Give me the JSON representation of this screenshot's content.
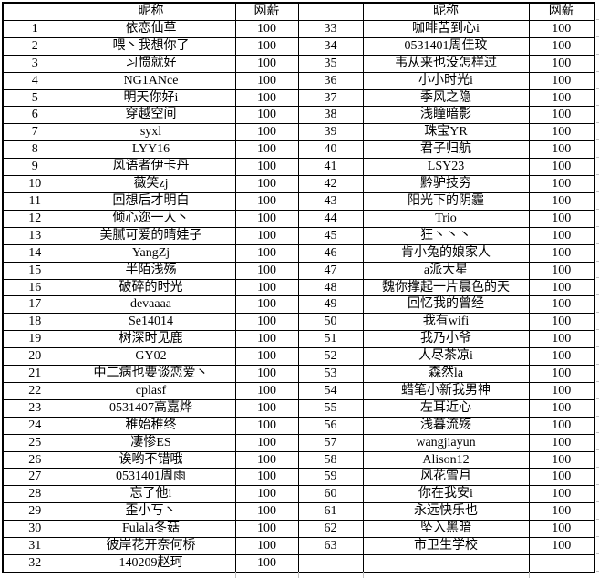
{
  "table": {
    "headers": {
      "index_label": "",
      "nickname": "昵称",
      "salary": "网薪"
    },
    "left_rows": [
      {
        "num": "1",
        "name": "依恋仙草",
        "salary": "100"
      },
      {
        "num": "2",
        "name": "喂丶我想你了",
        "salary": "100"
      },
      {
        "num": "3",
        "name": "习惯就好",
        "salary": "100"
      },
      {
        "num": "4",
        "name": "NG1ANce",
        "salary": "100"
      },
      {
        "num": "5",
        "name": "明天你好i",
        "salary": "100"
      },
      {
        "num": "6",
        "name": "穿越空间",
        "salary": "100"
      },
      {
        "num": "7",
        "name": "syxl",
        "salary": "100"
      },
      {
        "num": "8",
        "name": "LYY16",
        "salary": "100"
      },
      {
        "num": "9",
        "name": "风语者伊卡丹",
        "salary": "100"
      },
      {
        "num": "10",
        "name": "薇笑zj",
        "salary": "100"
      },
      {
        "num": "11",
        "name": "回想后才明白",
        "salary": "100"
      },
      {
        "num": "12",
        "name": "倾心迩一人丶",
        "salary": "100"
      },
      {
        "num": "13",
        "name": "美腻可爱的晴娃子",
        "salary": "100"
      },
      {
        "num": "14",
        "name": "YangZj",
        "salary": "100"
      },
      {
        "num": "15",
        "name": "半陌浅殇",
        "salary": "100"
      },
      {
        "num": "16",
        "name": "破碎的时光",
        "salary": "100"
      },
      {
        "num": "17",
        "name": "devaaaa",
        "salary": "100"
      },
      {
        "num": "18",
        "name": "Se14014",
        "salary": "100"
      },
      {
        "num": "19",
        "name": "树深时见鹿",
        "salary": "100"
      },
      {
        "num": "20",
        "name": "GY02",
        "salary": "100"
      },
      {
        "num": "21",
        "name": "中二病也要谈恋爱丶",
        "salary": "100"
      },
      {
        "num": "22",
        "name": "cplasf",
        "salary": "100"
      },
      {
        "num": "23",
        "name": "0531407高嘉烨",
        "salary": "100"
      },
      {
        "num": "24",
        "name": "稚始稚终",
        "salary": "100"
      },
      {
        "num": "25",
        "name": "凄惨ES",
        "salary": "100"
      },
      {
        "num": "26",
        "name": "诶哟不错哦",
        "salary": "100"
      },
      {
        "num": "27",
        "name": "0531401周雨",
        "salary": "100"
      },
      {
        "num": "28",
        "name": "忘了他i",
        "salary": "100"
      },
      {
        "num": "29",
        "name": "歪小丂丶",
        "salary": "100"
      },
      {
        "num": "30",
        "name": "Fulala冬菇",
        "salary": "100"
      },
      {
        "num": "31",
        "name": "彼岸花开奈何桥",
        "salary": "100"
      },
      {
        "num": "32",
        "name": "140209赵珂",
        "salary": "100"
      }
    ],
    "right_rows": [
      {
        "num": "33",
        "name": "咖啡苦到心i",
        "salary": "100"
      },
      {
        "num": "34",
        "name": "0531401周佳玟",
        "salary": "100"
      },
      {
        "num": "35",
        "name": "韦从来也没怎样过",
        "salary": "100"
      },
      {
        "num": "36",
        "name": "小小时光i",
        "salary": "100"
      },
      {
        "num": "37",
        "name": "季风之隐",
        "salary": "100"
      },
      {
        "num": "38",
        "name": "浅瞳暗影",
        "salary": "100"
      },
      {
        "num": "39",
        "name": "珠宝YR",
        "salary": "100"
      },
      {
        "num": "40",
        "name": "君子归航",
        "salary": "100"
      },
      {
        "num": "41",
        "name": "LSY23",
        "salary": "100"
      },
      {
        "num": "42",
        "name": "黔驴技穷",
        "salary": "100"
      },
      {
        "num": "43",
        "name": "阳光下的阴霾",
        "salary": "100"
      },
      {
        "num": "44",
        "name": "Trio",
        "salary": "100"
      },
      {
        "num": "45",
        "name": "狂丶丶丶",
        "salary": "100"
      },
      {
        "num": "46",
        "name": "肯小兔的娘家人",
        "salary": "100"
      },
      {
        "num": "47",
        "name": "a派大星",
        "salary": "100"
      },
      {
        "num": "48",
        "name": "魏你撑起一片晨色的天",
        "salary": "100"
      },
      {
        "num": "49",
        "name": "回忆我的曾经",
        "salary": "100"
      },
      {
        "num": "50",
        "name": "我有wifi",
        "salary": "100"
      },
      {
        "num": "51",
        "name": "我乃小爷",
        "salary": "100"
      },
      {
        "num": "52",
        "name": "人尽茶凉i",
        "salary": "100"
      },
      {
        "num": "53",
        "name": "森然la",
        "salary": "100"
      },
      {
        "num": "54",
        "name": "蜡笔小新我男神",
        "salary": "100"
      },
      {
        "num": "55",
        "name": "左耳近心",
        "salary": "100"
      },
      {
        "num": "56",
        "name": "浅暮流殇",
        "salary": "100"
      },
      {
        "num": "57",
        "name": "wangjiayun",
        "salary": "100"
      },
      {
        "num": "58",
        "name": "Alison12",
        "salary": "100"
      },
      {
        "num": "59",
        "name": "风花雪月",
        "salary": "100"
      },
      {
        "num": "60",
        "name": "你在我安i",
        "salary": "100"
      },
      {
        "num": "61",
        "name": "永远快乐也",
        "salary": "100"
      },
      {
        "num": "62",
        "name": "坠入黑暗",
        "salary": "100"
      },
      {
        "num": "63",
        "name": "市卫生学校",
        "salary": "100"
      },
      {
        "num": "",
        "name": "",
        "salary": ""
      }
    ]
  },
  "colors": {
    "text": "#000000",
    "table_border": "#000000",
    "background": "#ffffff",
    "gridline": "#c0c0c0"
  }
}
